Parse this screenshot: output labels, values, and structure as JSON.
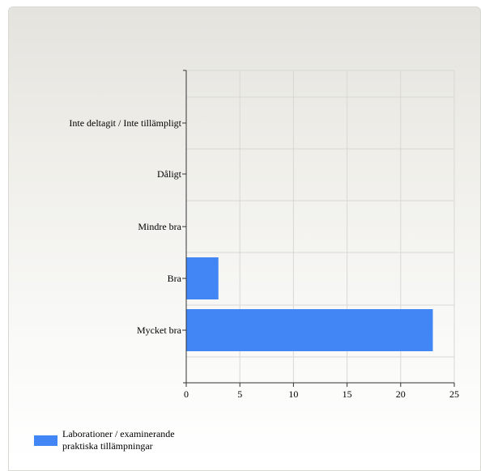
{
  "chart_data": {
    "type": "bar",
    "orientation": "horizontal",
    "categories": [
      "Inte deltagit / Inte tillämpligt",
      "Dåligt",
      "Mindre bra",
      "Bra",
      "Mycket bra"
    ],
    "series": [
      {
        "name": "Laborationer / examinerande praktiska tillämpningar",
        "values": [
          0,
          0,
          0,
          3,
          23
        ]
      }
    ],
    "xlim": [
      0,
      25
    ],
    "xticks": [
      0,
      5,
      10,
      15,
      20,
      25
    ],
    "grid": true,
    "legend_position": "bottom-left",
    "bar_color": "#4285f4"
  },
  "legend": {
    "label": "Laborationer / examinerande praktiska tillämpningar"
  }
}
